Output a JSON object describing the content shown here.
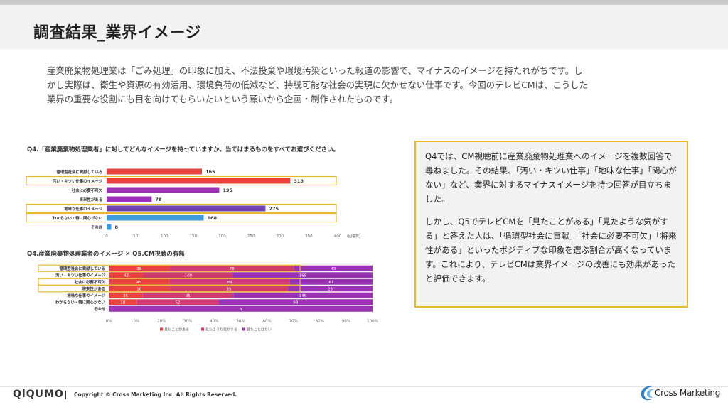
{
  "header": {
    "title": "調査結果_業界イメージ"
  },
  "intro_lines": [
    "産業廃棄物処理業は「ごみ処理」の印象に加え、不法投棄や環境汚染といった報道の影響で、マイナスのイメージを持たれがちです。し",
    "かし実際は、衛生や資源の有効活用、環境負荷の低減など、持続可能な社会の実現に欠かせない仕事です。今回のテレビCMは、こうした",
    "業界の重要な役割にも目を向けてもらいたいという願いから企画・制作されたものです。"
  ],
  "chart_data": [
    {
      "type": "bar",
      "orientation": "horizontal",
      "title": "Q4.「産業廃棄物処理業者」に対してどんなイメージを持っていますか。当てはまるものをすべてお選びください。",
      "categories": [
        "循環型社会に貢献している",
        "汚い・キツい仕事のイメージ",
        "社会に必要不可欠",
        "将来性がある",
        "地味な仕事のイメージ",
        "わからない・特に関心がない",
        "その他"
      ],
      "values": [
        165,
        318,
        195,
        78,
        275,
        168,
        8
      ],
      "bar_colors": [
        "#e8413e",
        "#e8413e",
        "#9b32b4",
        "#9b32b4",
        "#6e3fb0",
        "#3d9bdc",
        "#3d9bdc"
      ],
      "highlighted": [
        "汚い・キツい仕事のイメージ",
        "地味な仕事のイメージ",
        "わからない・特に関心がない"
      ],
      "x_ticks": [
        "0",
        "50",
        "100",
        "150",
        "200",
        "250",
        "300",
        "350",
        "400"
      ],
      "xlim": [
        0,
        400
      ],
      "unit": "(回答数)",
      "xlabel": "",
      "ylabel": ""
    },
    {
      "type": "bar",
      "orientation": "horizontal",
      "stacked": "percent",
      "title": "Q4.産業廃棄物処理業者のイメージ ✕ Q5.CM視聴の有無",
      "categories": [
        "循環型社会に貢献している",
        "汚い・キツい仕事のイメージ",
        "社会に必要不可欠",
        "将来性がある",
        "地味な仕事のイメージ",
        "わからない・特に関心がない",
        "その他"
      ],
      "series": [
        {
          "name": "見たことがある",
          "color": "#e8413e",
          "values": [
            38,
            42,
            45,
            18,
            35,
            18,
            0
          ]
        },
        {
          "name": "見たような気がする",
          "color": "#d13a70",
          "values": [
            78,
            108,
            89,
            35,
            95,
            52,
            0
          ]
        },
        {
          "name": "見たことはない",
          "color": "#9b32b4",
          "values": [
            49,
            168,
            61,
            25,
            145,
            98,
            8
          ]
        }
      ],
      "highlighted": [
        "循環型社会に貢献している",
        "社会に必要不可欠",
        "将来性がある"
      ],
      "x_ticks": [
        "0%",
        "10%",
        "20%",
        "30%",
        "40%",
        "50%",
        "60%",
        "70%",
        "80%",
        "90%",
        "100%"
      ],
      "xlim": [
        0,
        100
      ],
      "xlabel": "",
      "ylabel": ""
    }
  ],
  "callout": {
    "paragraph1": "Q4では、CM視聴前に産業廃棄物処理業へのイメージを複数回答で尋ねました。その結果、「汚い・キツい仕事」「地味な仕事」「関心がない」など、業界に対するマイナスイメージを持つ回答が目立ちました。",
    "paragraph2": "しかし、Q5でテレビCMを「見たことがある」「見たような気がする」と答えた人は、「循環型社会に貢献」「社会に必要不可欠」「将来性がある」といったポジティブな印象を選ぶ割合が高くなっています。これにより、テレビCMは業界イメージの改善にも効果があったと評価できます。"
  },
  "footer": {
    "brand": "QiQUMO",
    "copyright": "Copyright © Cross Marketing Inc. All Rights Reserved.",
    "company": "Cross Marketing"
  }
}
